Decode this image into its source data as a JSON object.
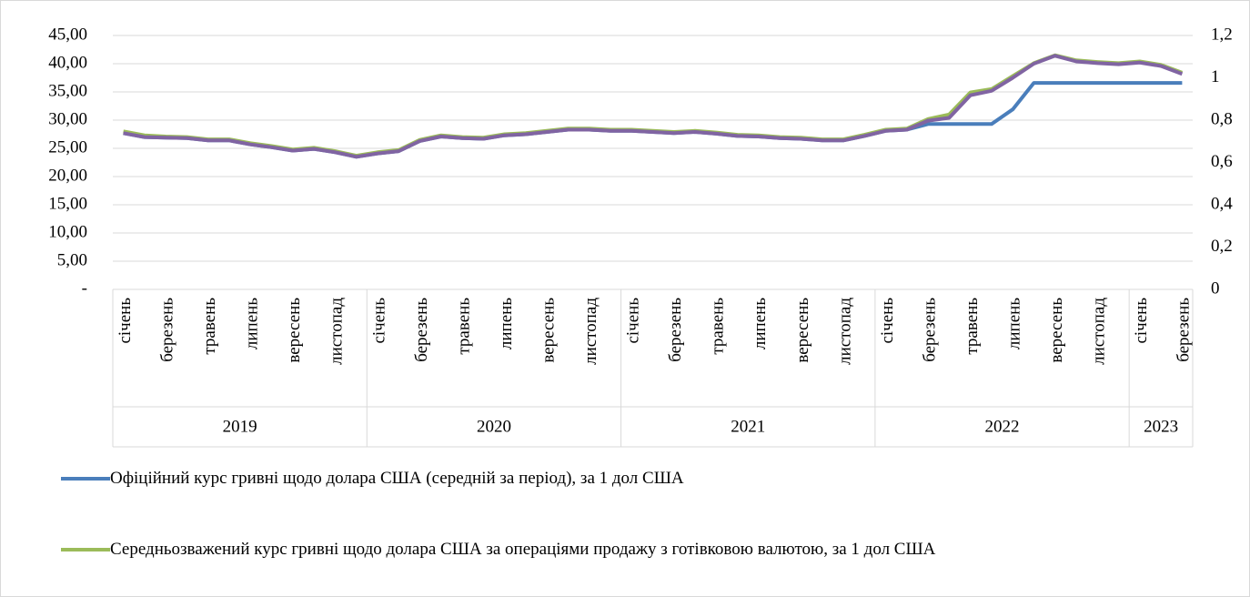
{
  "chart_data": {
    "type": "line",
    "categories": [
      "січень",
      null,
      "березень",
      null,
      "травень",
      null,
      "липень",
      null,
      "вересень",
      null,
      "листопад",
      null,
      "січень",
      null,
      "березень",
      null,
      "травень",
      null,
      "липень",
      null,
      "вересень",
      null,
      "листопад",
      null,
      "січень",
      null,
      "березень",
      null,
      "травень",
      null,
      "липень",
      null,
      "вересень",
      null,
      "листопад",
      null,
      "січень",
      null,
      "березень",
      null,
      "травень",
      null,
      "липень",
      null,
      "вересень",
      null,
      "листопад",
      null,
      "січень",
      null,
      "березень"
    ],
    "years": [
      "2019",
      "2020",
      "2021",
      "2022",
      "2023"
    ],
    "series": [
      {
        "name": "Офіційний курс гривні щодо долара США (середній за період), за 1 дол США",
        "color": "#4a7ebb",
        "values": [
          27.7,
          27.0,
          26.9,
          26.8,
          26.4,
          26.4,
          25.7,
          25.2,
          24.6,
          24.9,
          24.3,
          23.5,
          24.1,
          24.5,
          26.3,
          27.1,
          26.8,
          26.7,
          27.3,
          27.5,
          27.9,
          28.3,
          28.3,
          28.1,
          28.1,
          27.9,
          27.7,
          27.9,
          27.6,
          27.2,
          27.1,
          26.8,
          26.7,
          26.4,
          26.4,
          27.2,
          28.1,
          28.3,
          29.3,
          29.3,
          29.3,
          29.3,
          31.9,
          36.6,
          36.6,
          36.6,
          36.6,
          36.6,
          36.6,
          36.6,
          36.6
        ]
      },
      {
        "name": "Середньозважений курс гривні щодо долара США за операціями продажу з готівковою валютою, за 1 дол США",
        "color": "#9bbb59",
        "values": [
          28.0,
          27.3,
          27.1,
          27.0,
          26.6,
          26.6,
          25.9,
          25.4,
          24.8,
          25.1,
          24.5,
          23.7,
          24.3,
          24.7,
          26.5,
          27.3,
          27.0,
          26.9,
          27.5,
          27.7,
          28.1,
          28.5,
          28.5,
          28.3,
          28.3,
          28.1,
          27.9,
          28.1,
          27.8,
          27.4,
          27.3,
          27.0,
          26.9,
          26.6,
          26.6,
          27.4,
          28.3,
          28.5,
          30.2,
          31.0,
          34.9,
          35.5,
          37.8,
          40.1,
          41.5,
          40.6,
          40.3,
          40.1,
          40.4,
          39.8,
          38.4
        ]
      },
      {
        "color": "#8064a2",
        "values": [
          27.7,
          27.0,
          26.9,
          26.8,
          26.4,
          26.4,
          25.7,
          25.2,
          24.6,
          24.9,
          24.3,
          23.5,
          24.1,
          24.5,
          26.3,
          27.1,
          26.8,
          26.7,
          27.3,
          27.5,
          27.9,
          28.3,
          28.3,
          28.1,
          28.1,
          27.9,
          27.7,
          27.9,
          27.6,
          27.2,
          27.1,
          26.8,
          26.7,
          26.4,
          26.4,
          27.2,
          28.1,
          28.3,
          29.9,
          30.4,
          34.4,
          35.2,
          37.5,
          40.0,
          41.4,
          40.4,
          40.1,
          39.9,
          40.2,
          39.6,
          38.2
        ]
      }
    ],
    "ylim": [
      0,
      45
    ],
    "yticks": [
      {
        "value": 0,
        "label": "-"
      },
      {
        "value": 5,
        "label": "5,00"
      },
      {
        "value": 10,
        "label": "10,00"
      },
      {
        "value": 15,
        "label": "15,00"
      },
      {
        "value": 20,
        "label": "20,00"
      },
      {
        "value": 25,
        "label": "25,00"
      },
      {
        "value": 30,
        "label": "30,00"
      },
      {
        "value": 35,
        "label": "35,00"
      },
      {
        "value": 40,
        "label": "40,00"
      },
      {
        "value": 45,
        "label": "45,00"
      }
    ],
    "y2lim": [
      0,
      1.2
    ],
    "y2ticks": [
      0,
      {
        "value": 0.2,
        "label": "0,2"
      },
      {
        "value": 0.4,
        "label": "0,4"
      },
      {
        "value": 0.6,
        "label": "0,6"
      },
      {
        "value": 0.8,
        "label": "0,8"
      },
      1,
      {
        "value": 1.2,
        "label": "1,2"
      }
    ],
    "grid": true
  }
}
